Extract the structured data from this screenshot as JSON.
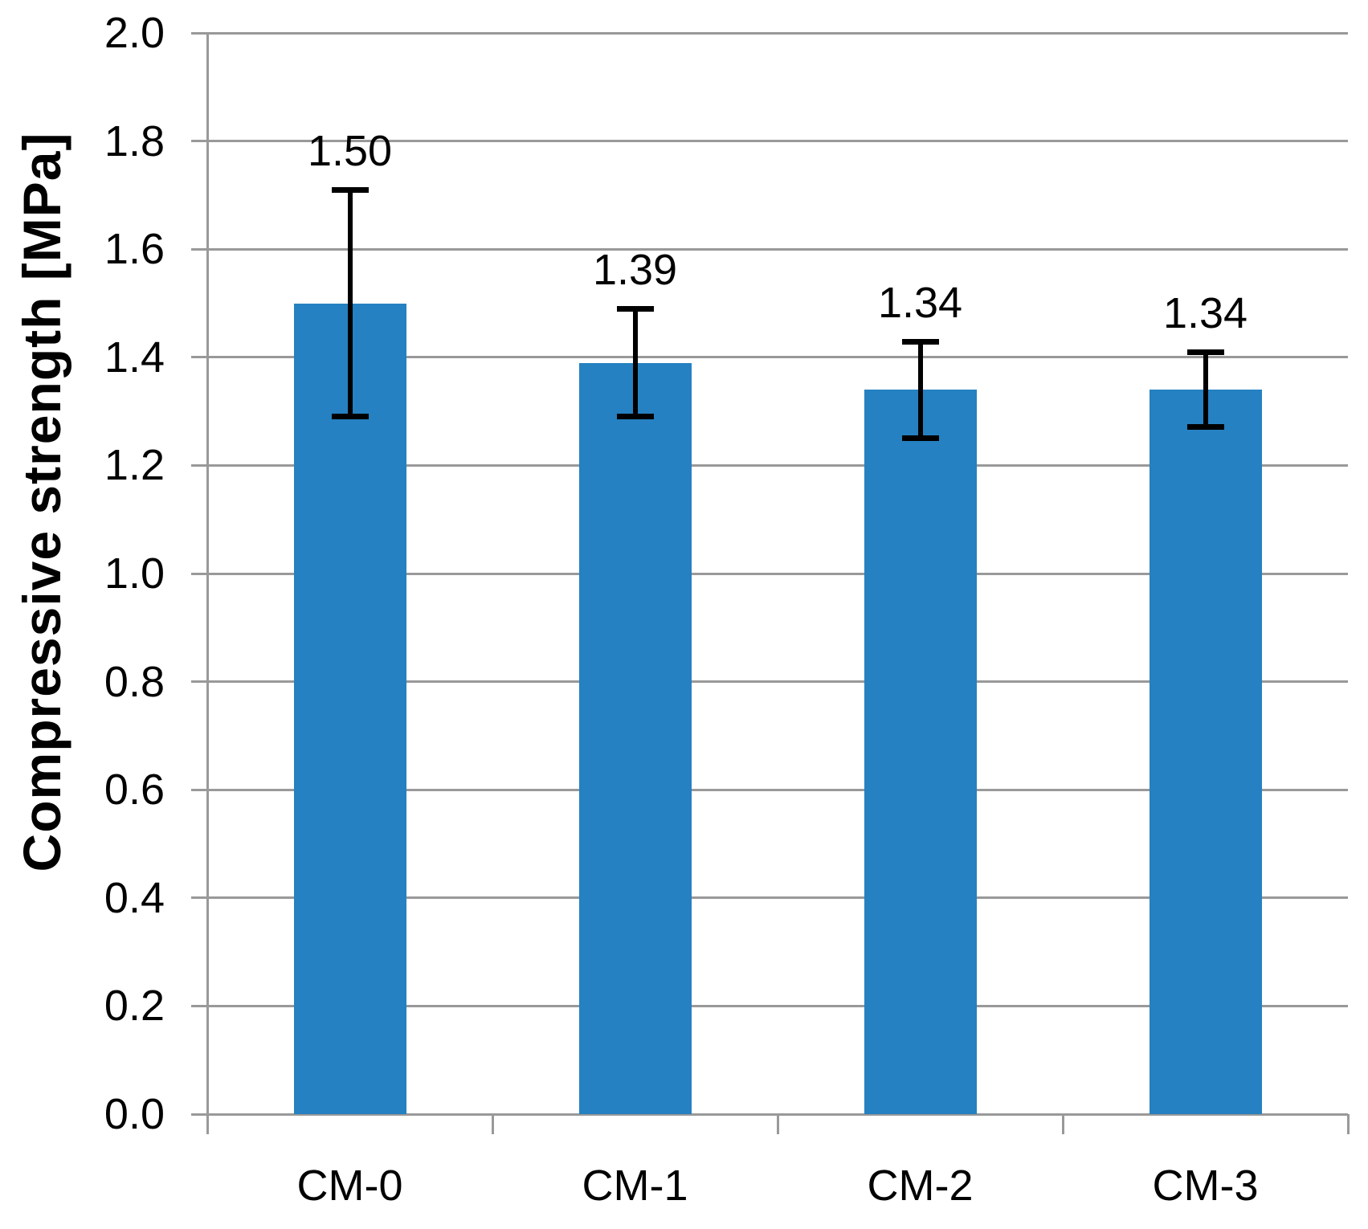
{
  "chart_data": {
    "type": "bar",
    "title": "",
    "xlabel": "",
    "ylabel": "Compressive strength [MPa]",
    "categories": [
      "CM-0",
      "CM-1",
      "CM-2",
      "CM-3"
    ],
    "values": [
      1.5,
      1.39,
      1.34,
      1.34
    ],
    "bar_labels": [
      "1.50",
      "1.39",
      "1.34",
      "1.34"
    ],
    "error_plus": [
      0.21,
      0.1,
      0.09,
      0.07
    ],
    "error_minus": [
      0.21,
      0.1,
      0.09,
      0.07
    ],
    "ylim": [
      0.0,
      2.0
    ],
    "ytick_step": 0.2,
    "ytick_labels": [
      "0.0",
      "0.2",
      "0.4",
      "0.6",
      "0.8",
      "1.0",
      "1.2",
      "1.4",
      "1.6",
      "1.8",
      "2.0"
    ],
    "grid": true,
    "legend_position": "none",
    "bar_color": "#2581c1",
    "grid_color": "#999999",
    "axis_color": "#999999",
    "error_bar_color": "#000000",
    "text_color": "#000000"
  }
}
